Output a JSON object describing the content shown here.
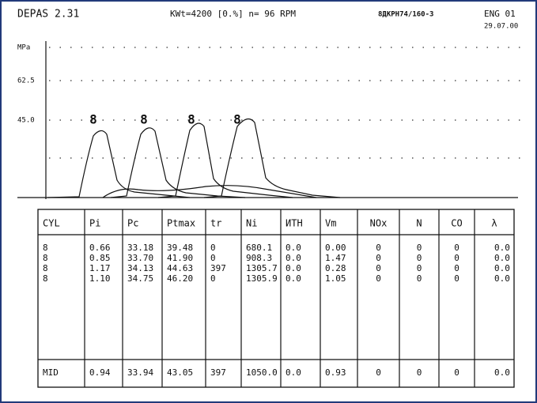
{
  "header": {
    "program": "DEPAS 2.31",
    "load": "KWt=4200 [0.%] n= 96 RPM",
    "engine": "8ДКРН74/160-3",
    "code": "ENG 01",
    "date": "29.07.00"
  },
  "chart": {
    "unit": "MPa",
    "levels": [
      "62.5",
      "45.0"
    ],
    "curve_labels": [
      "8",
      "8",
      "8",
      "8"
    ]
  },
  "table": {
    "columns": [
      "CYL",
      "Pi",
      "Pc",
      "Ptmax",
      "tr",
      "Ni",
      "ИТН",
      "Vm",
      "NOx",
      "N",
      "CO",
      "λ"
    ],
    "rows": [
      [
        "8",
        "0.66",
        "33.18",
        "39.48",
        "0",
        "680.1",
        "0.0",
        "0.00",
        "0",
        "0",
        "0",
        "0.0"
      ],
      [
        "8",
        "0.85",
        "33.70",
        "41.90",
        "0",
        "908.3",
        "0.0",
        "1.47",
        "0",
        "0",
        "0",
        "0.0"
      ],
      [
        "8",
        "1.17",
        "34.13",
        "44.63",
        "397",
        "1305.7",
        "0.0",
        "0.28",
        "0",
        "0",
        "0",
        "0.0"
      ],
      [
        "8",
        "1.10",
        "34.75",
        "46.20",
        "0",
        "1305.9",
        "0.0",
        "1.05",
        "0",
        "0",
        "0",
        "0.0"
      ]
    ],
    "mid": [
      "MID",
      "0.94",
      "33.94",
      "43.05",
      "397",
      "1050.0",
      "0.0",
      "0.93",
      "0",
      "0",
      "0",
      "0.0"
    ]
  }
}
